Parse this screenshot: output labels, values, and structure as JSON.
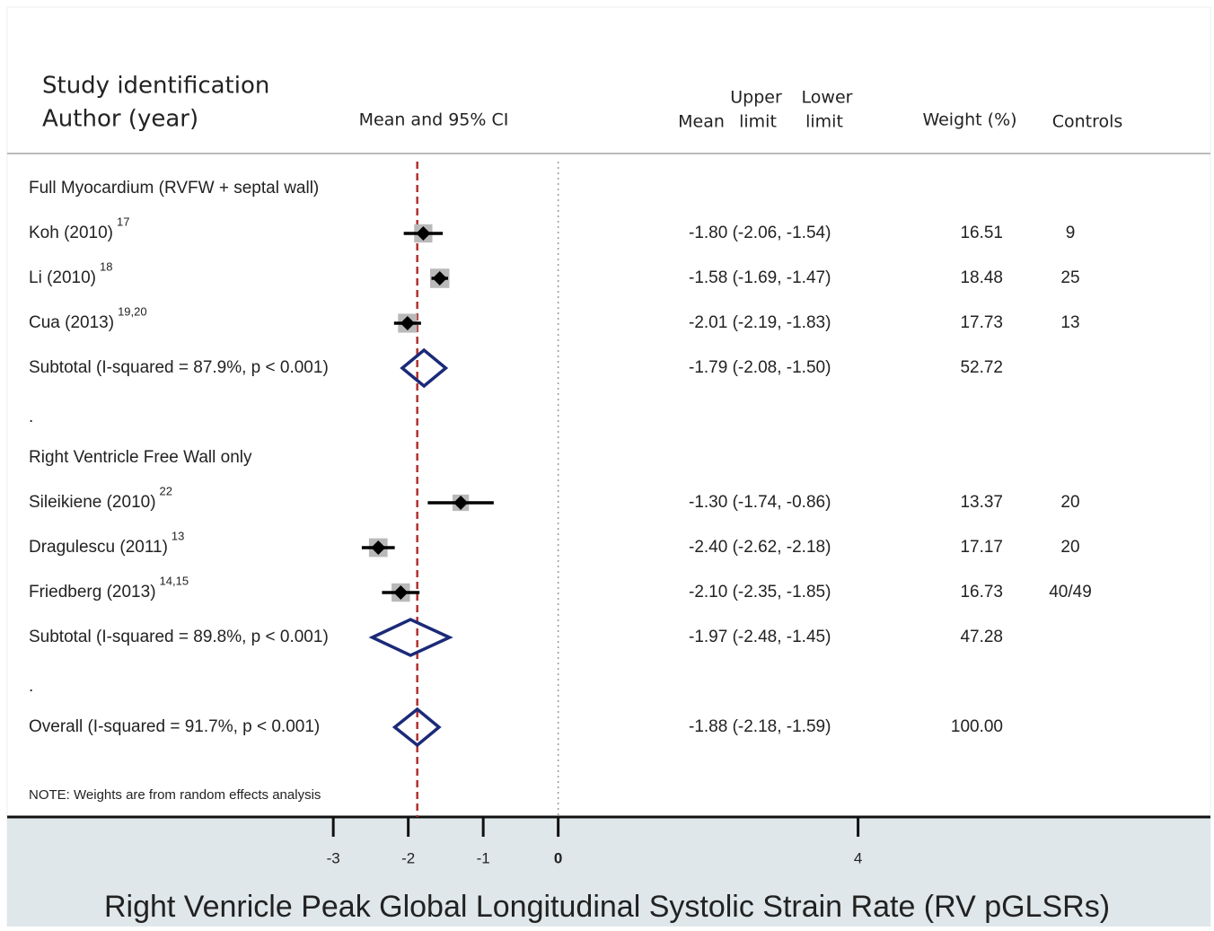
{
  "chart_data": {
    "type": "forest",
    "headers": {
      "study_identification": "Study identification",
      "author_year": "Author (year)",
      "mean_ci": "Mean and 95% CI",
      "mean": "Mean",
      "upper_limit": [
        "Upper",
        "limit"
      ],
      "lower_limit": [
        "Lower",
        "limit"
      ],
      "weight": "Weight (%)",
      "controls": "Controls"
    },
    "groups": [
      {
        "name": "Full Myocardium (RVFW + septal wall)",
        "studies": [
          {
            "name": "Koh (2010)",
            "refs": "17",
            "mean": -1.8,
            "lower": -2.06,
            "upper": -1.54,
            "label": "-1.80 (-2.06, -1.54)",
            "weight": 16.51,
            "controls": "9"
          },
          {
            "name": "Li  (2010)",
            "refs": "18",
            "mean": -1.58,
            "lower": -1.69,
            "upper": -1.47,
            "label": "-1.58 (-1.69, -1.47)",
            "weight": 18.48,
            "controls": "25"
          },
          {
            "name": "Cua (2013)",
            "refs": "19,20",
            "mean": -2.01,
            "lower": -2.19,
            "upper": -1.83,
            "label": "-2.01 (-2.19, -1.83)",
            "weight": 17.73,
            "controls": "13"
          }
        ],
        "subtotal": {
          "name": "Subtotal  (I-squared = 87.9%, p < 0.001)",
          "mean": -1.79,
          "lower": -2.08,
          "upper": -1.5,
          "label": "-1.79 (-2.08, -1.50)",
          "weight": 52.72
        },
        "spacer": "."
      },
      {
        "name": "Right Ventricle Free Wall only",
        "studies": [
          {
            "name": "Sileikiene (2010)",
            "refs": "22",
            "mean": -1.3,
            "lower": -1.74,
            "upper": -0.86,
            "label": "-1.30 (-1.74, -0.86)",
            "weight": 13.37,
            "controls": "20"
          },
          {
            "name": "Dragulescu (2011)",
            "refs": "13",
            "mean": -2.4,
            "lower": -2.62,
            "upper": -2.18,
            "label": "-2.40 (-2.62, -2.18)",
            "weight": 17.17,
            "controls": "20"
          },
          {
            "name": "Friedberg (2013)",
            "refs": "14,15",
            "mean": -2.1,
            "lower": -2.35,
            "upper": -1.85,
            "label": "-2.10 (-2.35, -1.85)",
            "weight": 16.73,
            "controls": "40/49"
          }
        ],
        "subtotal": {
          "name": "Subtotal  (I-squared = 89.8%, p < 0.001)",
          "mean": -1.97,
          "lower": -2.48,
          "upper": -1.45,
          "label": "-1.97 (-2.48, -1.45)",
          "weight": 47.28
        },
        "spacer": "."
      }
    ],
    "overall": {
      "name": "Overall  (I-squared = 91.7%, p < 0.001)",
      "mean": -1.88,
      "lower": -2.18,
      "upper": -1.59,
      "label": "-1.88 (-2.18, -1.59)",
      "weight": 100,
      "weight_label": "100.00"
    },
    "note": "NOTE: Weights are from random effects analysis",
    "null_line": 0,
    "xlim": [
      -7.35,
      8.7
    ],
    "xticks": [
      -3,
      -2,
      -1,
      0,
      4
    ],
    "xlabel": "Right Venricle Peak Global Longitudinal Systolic Strain Rate (RV pGLSRs)",
    "box_color": "#b9b9b9",
    "diamond_color": "#1b2a78",
    "overall_line_color": "#b03030"
  }
}
